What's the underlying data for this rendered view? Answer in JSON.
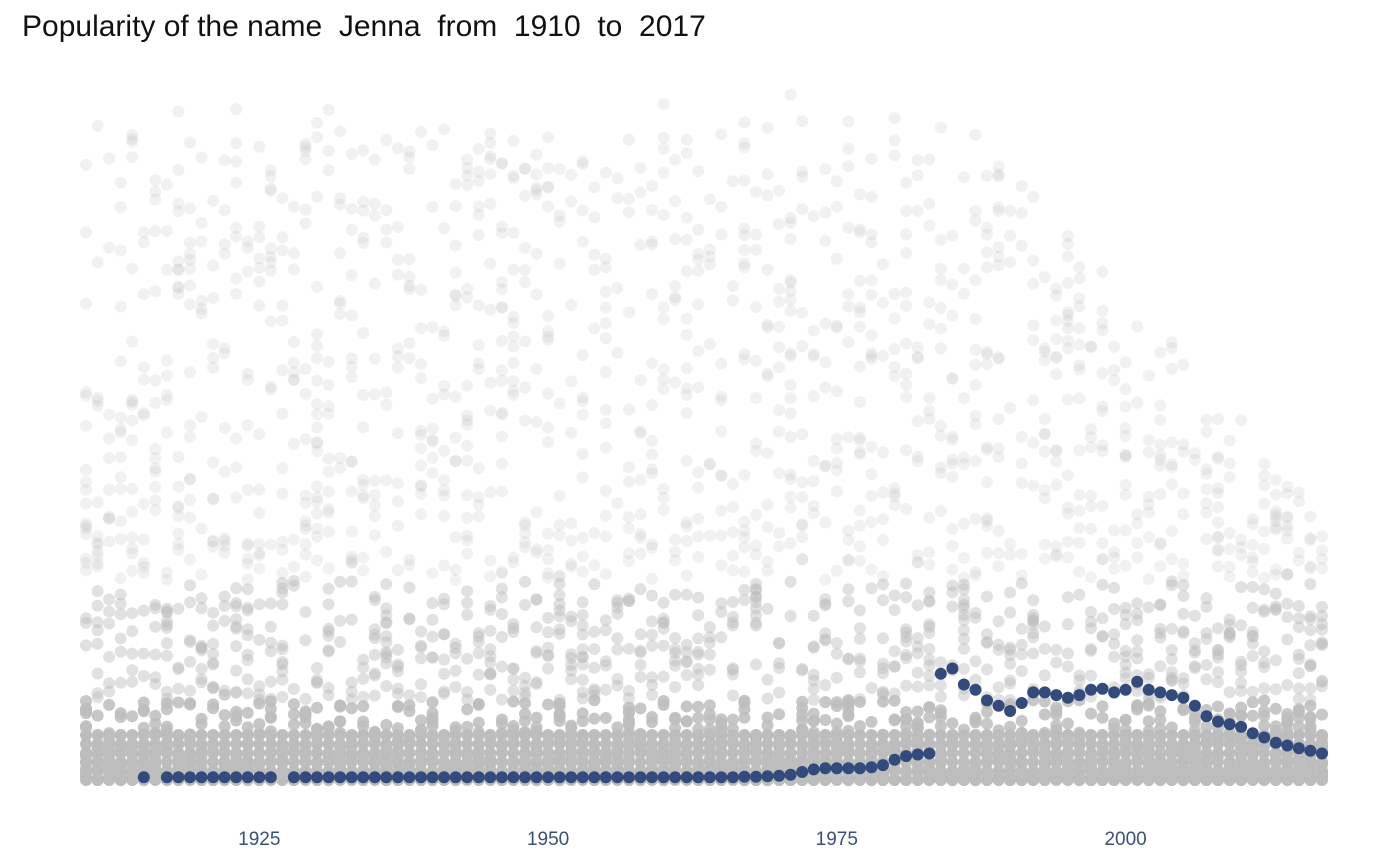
{
  "title": "Popularity of the name  Jenna  from  1910  to  2017",
  "colors": {
    "highlight": "#324b7c",
    "background_points": "#bdbdbd",
    "tick_label": "#3a4f7a"
  },
  "chart_data": {
    "type": "scatter",
    "title": "Popularity of the name  Jenna  from  1910  to  2017",
    "xlabel": "",
    "ylabel": "",
    "xlim": [
      1910,
      2017
    ],
    "x_ticks": [
      1925,
      1950,
      1975,
      2000
    ],
    "y_axis_visible": false,
    "grid": false,
    "legend": "none",
    "series": [
      {
        "name": "Jenna",
        "x": [
          1915,
          1917,
          1918,
          1919,
          1920,
          1921,
          1922,
          1923,
          1924,
          1925,
          1926,
          1928,
          1929,
          1930,
          1931,
          1932,
          1933,
          1934,
          1935,
          1936,
          1937,
          1938,
          1939,
          1940,
          1941,
          1942,
          1943,
          1944,
          1945,
          1946,
          1947,
          1948,
          1949,
          1950,
          1951,
          1952,
          1953,
          1954,
          1955,
          1956,
          1957,
          1958,
          1959,
          1960,
          1961,
          1962,
          1963,
          1964,
          1965,
          1966,
          1967,
          1968,
          1969,
          1970,
          1971,
          1972,
          1973,
          1974,
          1975,
          1976,
          1977,
          1978,
          1979,
          1980,
          1981,
          1982,
          1983,
          1984,
          1985,
          1986,
          1987,
          1988,
          1989,
          1990,
          1991,
          1992,
          1993,
          1994,
          1995,
          1996,
          1997,
          1998,
          1999,
          2000,
          2001,
          2002,
          2003,
          2004,
          2005,
          2006,
          2007,
          2008,
          2009,
          2010,
          2011,
          2012,
          2013,
          2014,
          2015,
          2016,
          2017
        ],
        "y": [
          5,
          5,
          5,
          5,
          5,
          5,
          5,
          5,
          5,
          5,
          5,
          5,
          5,
          5,
          5,
          5,
          5,
          5,
          5,
          5,
          5,
          5,
          5,
          5,
          5,
          5,
          5,
          5,
          5,
          5,
          5,
          5,
          5,
          5,
          5,
          5,
          5,
          5,
          5,
          5,
          5,
          5,
          5,
          5,
          5,
          5,
          5,
          5,
          5,
          5,
          6,
          6,
          7,
          8,
          10,
          15,
          20,
          22,
          22,
          22,
          22,
          24,
          28,
          38,
          45,
          48,
          50,
          200,
          210,
          180,
          170,
          150,
          140,
          130,
          145,
          165,
          165,
          160,
          155,
          160,
          170,
          172,
          165,
          170,
          185,
          170,
          165,
          160,
          155,
          140,
          120,
          110,
          105,
          100,
          88,
          80,
          70,
          65,
          60,
          55,
          50
        ]
      },
      {
        "name": "",
        "description": "all other names (light gray background points, approximate)"
      }
    ]
  }
}
